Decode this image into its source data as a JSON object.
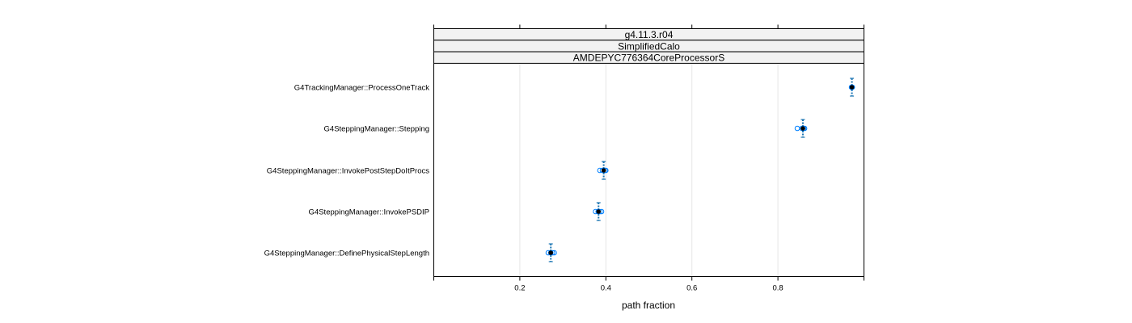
{
  "chart_data": {
    "type": "scatter",
    "strips": [
      "g4.11.3.r04",
      "SimplifiedCalo",
      "AMDEPYC776364CoreProcessorS"
    ],
    "xlabel": "path fraction",
    "xlim": [
      0.0,
      1.0
    ],
    "xticks": [
      0.2,
      0.4,
      0.6,
      0.8
    ],
    "xtick_labels": [
      "0.2",
      "0.4",
      "0.6",
      "0.8"
    ],
    "grid": true,
    "categories": [
      "G4TrackingManager::ProcessOneTrack",
      "G4SteppingManager::Stepping",
      "G4SteppingManager::InvokePostStepDoItProcs",
      "G4SteppingManager::InvokePSDIP",
      "G4SteppingManager::DefinePhysicalStepLength"
    ],
    "mean": [
      0.972,
      0.858,
      0.395,
      0.383,
      0.272
    ],
    "error_low": [
      0.968,
      0.852,
      0.39,
      0.38,
      0.268
    ],
    "error_high": [
      0.976,
      0.864,
      0.4,
      0.386,
      0.276
    ],
    "samples": [
      [
        0.972,
        0.972,
        0.973,
        0.971
      ],
      [
        0.845,
        0.856,
        0.86,
        0.862
      ],
      [
        0.386,
        0.392,
        0.398,
        0.4
      ],
      [
        0.376,
        0.382,
        0.386,
        0.39
      ],
      [
        0.266,
        0.272,
        0.276,
        0.28
      ]
    ],
    "colors": {
      "mean": "#000000",
      "samples": "#0080ff",
      "errorbar": "#1f77b4"
    }
  }
}
